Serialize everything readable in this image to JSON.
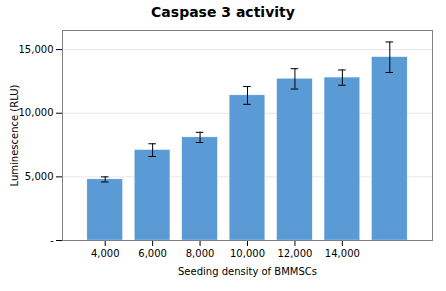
{
  "chart_data": {
    "type": "bar",
    "title": "Caspase 3 activity",
    "xlabel": "Seeding density of BMMSCs",
    "ylabel": "Luminescence (RLU)",
    "x": [
      4000,
      6000,
      8000,
      10000,
      12000,
      14000,
      16000
    ],
    "values": [
      4800,
      7100,
      8100,
      11400,
      12700,
      12800,
      14400
    ],
    "errors": [
      200,
      500,
      400,
      700,
      800,
      600,
      1200
    ],
    "color": "#5B9BD5",
    "xlim": [
      2200,
      17800
    ],
    "xticks": [
      {
        "value": 4000,
        "label": "4,000"
      },
      {
        "value": 6000,
        "label": "6,000"
      },
      {
        "value": 8000,
        "label": "8,000"
      },
      {
        "value": 10000,
        "label": "10,000"
      },
      {
        "value": 12000,
        "label": "12,000"
      },
      {
        "value": 14000,
        "label": "14,000"
      }
    ],
    "ylim": [
      0,
      16500
    ],
    "yticks": [
      {
        "value": 0,
        "label": "-"
      },
      {
        "value": 5000,
        "label": "5,000"
      },
      {
        "value": 10000,
        "label": "10,000"
      },
      {
        "value": 15000,
        "label": "15,000"
      }
    ],
    "grid": true
  }
}
